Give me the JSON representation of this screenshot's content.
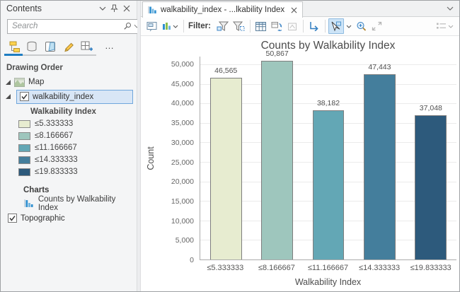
{
  "colors": {
    "accent_blue": "#1E7DC2",
    "selection_fill": "#D8E6F6",
    "selection_border": "#70A7DC"
  },
  "contents": {
    "title": "Contents",
    "search": {
      "placeholder": "Search"
    },
    "more_label": "…",
    "drawing_order_label": "Drawing Order",
    "map_label": "Map",
    "layer_label": "walkability_index",
    "legend_title": "Walkability Index",
    "legend_items": [
      {
        "label": "≤5.333333",
        "color": "#E7ECD0"
      },
      {
        "label": "≤8.166667",
        "color": "#9EC6BD"
      },
      {
        "label": "≤11.166667",
        "color": "#63A7B5"
      },
      {
        "label": "≤14.333333",
        "color": "#447E9C"
      },
      {
        "label": "≤19.833333",
        "color": "#2D5A7C"
      }
    ],
    "charts_label": "Charts",
    "chart_item_label": "Counts by Walkability Index",
    "basemap_label": "Topographic"
  },
  "chart_view": {
    "tab_title": "walkability_index - ...lkability Index",
    "filter_label": "Filter:"
  },
  "chart_data": {
    "type": "bar",
    "title": "Counts by Walkability Index",
    "categories": [
      "≤5.333333",
      "≤8.166667",
      "≤11.166667",
      "≤14.333333",
      "≤19.833333"
    ],
    "values": [
      46565,
      50867,
      38182,
      47443,
      37048
    ],
    "value_labels": [
      "46,565",
      "50,867",
      "38,182",
      "47,443",
      "37,048"
    ],
    "bar_colors": [
      "#E7ECD0",
      "#9EC6BD",
      "#63A7B5",
      "#447E9C",
      "#2D5A7C"
    ],
    "xlabel": "Walkability Index",
    "ylabel": "Count",
    "ylim": [
      0,
      52000
    ],
    "yticks": [
      0,
      5000,
      10000,
      15000,
      20000,
      25000,
      30000,
      35000,
      40000,
      45000,
      50000
    ],
    "ytick_labels": [
      "0",
      "5,000",
      "10,000",
      "15,000",
      "20,000",
      "25,000",
      "30,000",
      "35,000",
      "40,000",
      "45,000",
      "50,000"
    ],
    "grid": "horizontal",
    "legend": "none"
  }
}
